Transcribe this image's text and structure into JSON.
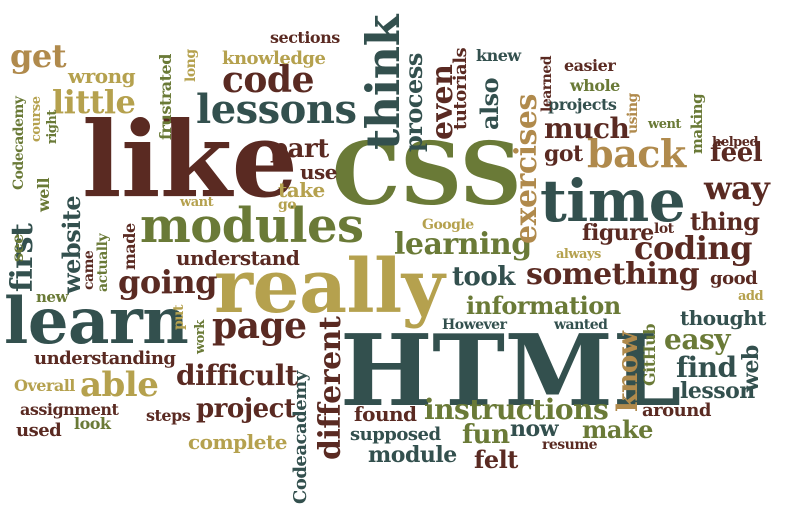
{
  "colors": {
    "dark_green": "#33504e",
    "olive": "#6a7a37",
    "gold": "#b5a14e",
    "tan": "#b08a4c",
    "maroon": "#5a2a22",
    "brown": "#8a4a22"
  },
  "words": [
    {
      "text": "HTML",
      "color": "dark_green"
    },
    {
      "text": "CSS",
      "color": "olive"
    },
    {
      "text": "like",
      "color": "maroon"
    },
    {
      "text": "really",
      "color": "gold"
    },
    {
      "text": "learn",
      "color": "dark_green"
    },
    {
      "text": "time",
      "color": "dark_green"
    },
    {
      "text": "modules",
      "color": "olive"
    },
    {
      "text": "think",
      "color": "dark_green"
    },
    {
      "text": "lessons",
      "color": "dark_green"
    },
    {
      "text": "code",
      "color": "maroon"
    },
    {
      "text": "page",
      "color": "maroon"
    },
    {
      "text": "back",
      "color": "tan"
    },
    {
      "text": "way",
      "color": "maroon"
    },
    {
      "text": "first",
      "color": "dark_green"
    },
    {
      "text": "little",
      "color": "gold"
    },
    {
      "text": "get",
      "color": "tan"
    },
    {
      "text": "able",
      "color": "gold"
    },
    {
      "text": "coding",
      "color": "maroon"
    },
    {
      "text": "learning",
      "color": "olive"
    },
    {
      "text": "something",
      "color": "maroon"
    },
    {
      "text": "going",
      "color": "maroon"
    },
    {
      "text": "different",
      "color": "maroon"
    },
    {
      "text": "exercises",
      "color": "tan"
    },
    {
      "text": "instructions",
      "color": "olive"
    },
    {
      "text": "information",
      "color": "olive"
    },
    {
      "text": "difficult",
      "color": "maroon"
    },
    {
      "text": "project",
      "color": "maroon"
    },
    {
      "text": "much",
      "color": "maroon"
    },
    {
      "text": "feel",
      "color": "maroon"
    },
    {
      "text": "took",
      "color": "dark_green"
    },
    {
      "text": "even",
      "color": "maroon"
    },
    {
      "text": "process",
      "color": "dark_green"
    },
    {
      "text": "website",
      "color": "dark_green"
    },
    {
      "text": "understand",
      "color": "maroon"
    },
    {
      "text": "figure",
      "color": "maroon"
    },
    {
      "text": "know",
      "color": "tan"
    },
    {
      "text": "easy",
      "color": "olive"
    },
    {
      "text": "find",
      "color": "dark_green"
    },
    {
      "text": "lesson",
      "color": "dark_green"
    },
    {
      "text": "web",
      "color": "dark_green"
    },
    {
      "text": "thing",
      "color": "maroon"
    },
    {
      "text": "part",
      "color": "maroon"
    },
    {
      "text": "use",
      "color": "maroon"
    },
    {
      "text": "take",
      "color": "gold"
    },
    {
      "text": "also",
      "color": "dark_green"
    },
    {
      "text": "got",
      "color": "maroon"
    },
    {
      "text": "fun",
      "color": "olive"
    },
    {
      "text": "now",
      "color": "dark_green"
    },
    {
      "text": "make",
      "color": "olive"
    },
    {
      "text": "module",
      "color": "dark_green"
    },
    {
      "text": "felt",
      "color": "maroon"
    },
    {
      "text": "found",
      "color": "maroon"
    },
    {
      "text": "complete",
      "color": "gold"
    },
    {
      "text": "supposed",
      "color": "dark_green"
    },
    {
      "text": "understanding",
      "color": "maroon"
    },
    {
      "text": "Overall",
      "color": "gold"
    },
    {
      "text": "assignment",
      "color": "maroon"
    },
    {
      "text": "used",
      "color": "maroon"
    },
    {
      "text": "look",
      "color": "olive"
    },
    {
      "text": "steps",
      "color": "maroon"
    },
    {
      "text": "wrong",
      "color": "gold"
    },
    {
      "text": "knowledge",
      "color": "gold"
    },
    {
      "text": "sections",
      "color": "maroon"
    },
    {
      "text": "tutorials",
      "color": "maroon"
    },
    {
      "text": "knew",
      "color": "dark_green"
    },
    {
      "text": "easier",
      "color": "maroon"
    },
    {
      "text": "whole",
      "color": "olive"
    },
    {
      "text": "projects",
      "color": "dark_green"
    },
    {
      "text": "learned",
      "color": "maroon"
    },
    {
      "text": "frustrated",
      "color": "olive"
    },
    {
      "text": "long",
      "color": "gold"
    },
    {
      "text": "Codecademy",
      "color": "olive"
    },
    {
      "text": "course",
      "color": "gold"
    },
    {
      "text": "right",
      "color": "olive"
    },
    {
      "text": "well",
      "color": "olive"
    },
    {
      "text": "see",
      "color": "olive"
    },
    {
      "text": "new",
      "color": "olive"
    },
    {
      "text": "came",
      "color": "maroon"
    },
    {
      "text": "actually",
      "color": "olive"
    },
    {
      "text": "made",
      "color": "maroon"
    },
    {
      "text": "put",
      "color": "gold"
    },
    {
      "text": "work",
      "color": "olive"
    },
    {
      "text": "want",
      "color": "gold"
    },
    {
      "text": "go",
      "color": "gold"
    },
    {
      "text": "Google",
      "color": "gold"
    },
    {
      "text": "always",
      "color": "gold"
    },
    {
      "text": "lot",
      "color": "maroon"
    },
    {
      "text": "However",
      "color": "dark_green"
    },
    {
      "text": "wanted",
      "color": "dark_green"
    },
    {
      "text": "GitHub",
      "color": "olive"
    },
    {
      "text": "thought",
      "color": "dark_green"
    },
    {
      "text": "around",
      "color": "maroon"
    },
    {
      "text": "resume",
      "color": "maroon"
    },
    {
      "text": "add",
      "color": "gold"
    },
    {
      "text": "good",
      "color": "maroon"
    },
    {
      "text": "helped",
      "color": "maroon"
    },
    {
      "text": "making",
      "color": "olive"
    },
    {
      "text": "went",
      "color": "olive"
    },
    {
      "text": "using",
      "color": "tan"
    },
    {
      "text": "Codeacademy",
      "color": "dark_green"
    }
  ]
}
